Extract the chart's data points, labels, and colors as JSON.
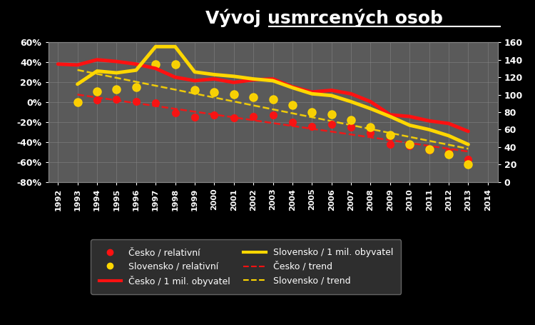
{
  "title_part1": "Vývoj ",
  "title_part2": "usmrcených osob",
  "background": "#000000",
  "plot_bg": "#5a5a5a",
  "years": [
    1992,
    1993,
    1994,
    1995,
    1996,
    1997,
    1998,
    1999,
    2000,
    2001,
    2002,
    2003,
    2004,
    2005,
    2006,
    2007,
    2008,
    2009,
    2010,
    2011,
    2012,
    2013,
    2014
  ],
  "cesko_rel_pct": [
    null,
    0.0,
    2.0,
    3.0,
    1.0,
    -1.0,
    -11.0,
    -15.0,
    -13.0,
    -16.0,
    -14.0,
    -13.0,
    -20.0,
    -24.0,
    -22.0,
    -25.0,
    -31.0,
    -42.0,
    -44.0,
    -48.0,
    -50.0,
    -57.0,
    null
  ],
  "slovensko_rel_pct": [
    null,
    0.0,
    11.0,
    13.0,
    15.0,
    38.0,
    38.0,
    12.0,
    10.0,
    8.0,
    5.0,
    3.0,
    -3.0,
    -10.0,
    -12.0,
    -18.0,
    -25.0,
    -33.0,
    -42.0,
    -47.0,
    -52.0,
    -62.0,
    null
  ],
  "cesko_per_mil": [
    135.0,
    134.0,
    140.0,
    138.0,
    135.0,
    130.0,
    120.0,
    116.0,
    118.0,
    114.0,
    117.0,
    118.0,
    109.0,
    103.0,
    105.0,
    101.0,
    92.0,
    77.0,
    75.0,
    70.0,
    67.0,
    58.0,
    null
  ],
  "slovensko_per_mil": [
    null,
    112.0,
    127.0,
    125.0,
    128.0,
    155.0,
    155.0,
    126.0,
    123.0,
    121.0,
    118.0,
    116.0,
    108.0,
    101.0,
    99.0,
    92.0,
    84.0,
    75.0,
    65.0,
    60.0,
    53.0,
    43.0,
    null
  ],
  "cesko_color": "#ff1111",
  "slovensko_color": "#ffd700",
  "text_color": "#ffffff",
  "ylim_left": [
    -0.8,
    0.6
  ],
  "ylim_right": [
    0,
    160
  ],
  "ytick_labels_left": [
    "-80%",
    "-60%",
    "-40%",
    "-20%",
    "0%",
    "20%",
    "40%",
    "60%"
  ],
  "ytick_vals_left": [
    -0.8,
    -0.6,
    -0.4,
    -0.2,
    0.0,
    0.2,
    0.4,
    0.6
  ],
  "ytick_vals_right": [
    0,
    20,
    40,
    60,
    80,
    100,
    120,
    140,
    160
  ],
  "legend_labels": [
    "Česko / relativní",
    "Slovensko / relativní",
    "Česko / 1 mil. obyvatel",
    "Slovensko / 1 mil. obyvatel",
    "Česko / trend",
    "Slovensko / trend"
  ]
}
